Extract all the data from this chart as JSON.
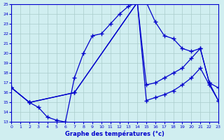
{
  "title": "Graphe des températures (°c)",
  "bg_color": "#d0eef0",
  "line_color": "#0000cc",
  "ylim": [
    13,
    25
  ],
  "xlim": [
    0,
    23
  ],
  "yticks": [
    13,
    14,
    15,
    16,
    17,
    18,
    19,
    20,
    21,
    22,
    23,
    24,
    25
  ],
  "xticks": [
    0,
    1,
    2,
    3,
    4,
    5,
    6,
    7,
    8,
    9,
    10,
    11,
    12,
    13,
    14,
    15,
    16,
    17,
    18,
    19,
    20,
    21,
    22,
    23
  ],
  "curve1_x": [
    0,
    2,
    3,
    4,
    5,
    6,
    7,
    8,
    9,
    10,
    11,
    12,
    13,
    14,
    15,
    16,
    17,
    18,
    19,
    20,
    21,
    22,
    23
  ],
  "curve1_y": [
    16.5,
    15.0,
    14.5,
    13.5,
    13.2,
    13.0,
    17.5,
    20.0,
    21.8,
    22.0,
    23.0,
    24.0,
    24.8,
    25.2,
    25.2,
    23.2,
    21.8,
    21.5,
    20.5,
    20.2,
    20.5,
    17.0,
    15.2
  ],
  "curve2_x": [
    0,
    2,
    7,
    14,
    15,
    16,
    17,
    18,
    19,
    20,
    21,
    22,
    23
  ],
  "curve2_y": [
    16.5,
    15.0,
    16.0,
    25.2,
    16.8,
    17.0,
    17.5,
    18.0,
    18.5,
    19.5,
    20.5,
    17.0,
    16.5
  ],
  "curve3_x": [
    0,
    2,
    7,
    14,
    15,
    16,
    17,
    18,
    19,
    20,
    21,
    22,
    23
  ],
  "curve3_y": [
    16.5,
    15.0,
    16.0,
    25.2,
    15.2,
    15.5,
    15.8,
    16.2,
    16.8,
    17.5,
    18.5,
    16.8,
    15.2
  ],
  "grid_color": "#aacccc",
  "marker": "+",
  "markersize": 4.0,
  "linewidth": 0.9
}
